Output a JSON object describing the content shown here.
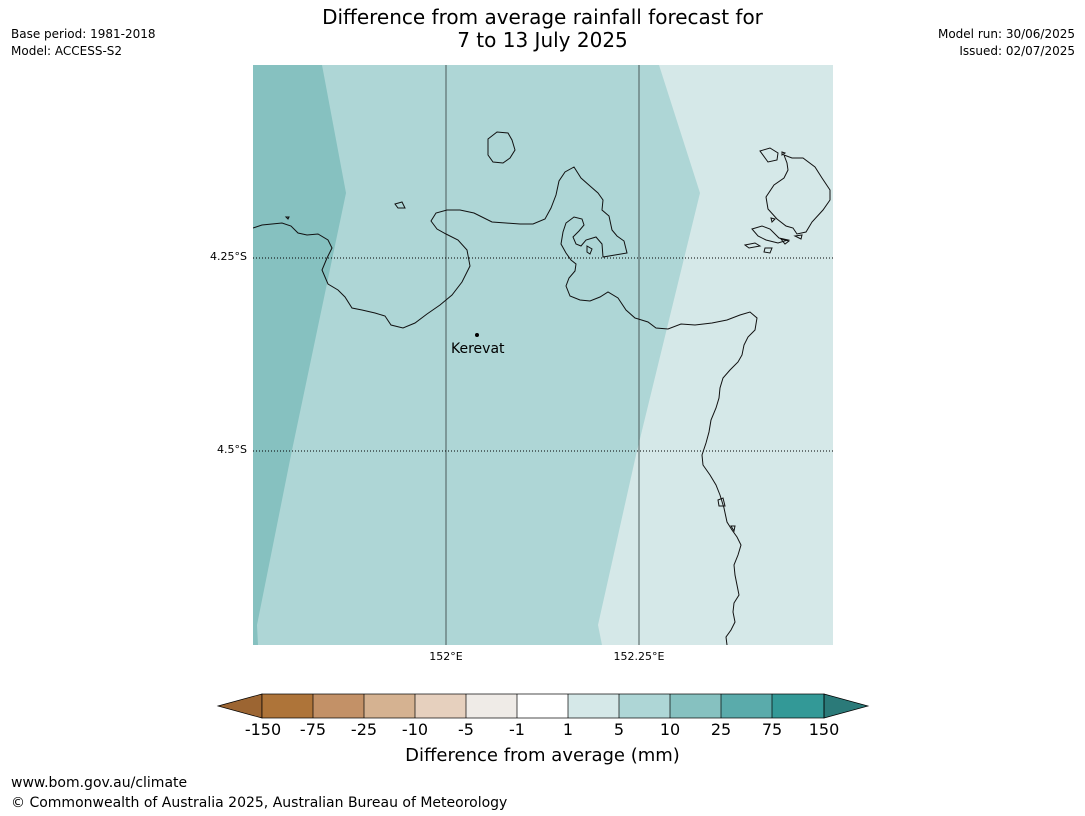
{
  "header": {
    "title_line1": "Difference from average rainfall forecast for",
    "title_line2": "7 to 13 July 2025",
    "base_period": "Base period: 1981-2018",
    "model": "Model: ACCESS-S2",
    "model_run": "Model run: 30/06/2025",
    "issued": "Issued: 02/07/2025"
  },
  "map": {
    "latitude_labels": [
      "4.25°S",
      "4.5°S"
    ],
    "longitude_labels": [
      "152°E",
      "152.25°E"
    ],
    "place_name": "Kerevat",
    "zone_colors": {
      "10_to_25": "#86c1c0",
      "5_to_10": "#aed6d6",
      "1_to_5": "#d5e8e8"
    }
  },
  "colorbar": {
    "title": "Difference from average (mm)",
    "ticks": [
      "-150",
      "-75",
      "-25",
      "-10",
      "-5",
      "-1",
      "1",
      "5",
      "10",
      "25",
      "75",
      "150"
    ],
    "colors": [
      "#9c6532",
      "#ae7439",
      "#c39167",
      "#d5b291",
      "#e6d0be",
      "#efebe7",
      "#ffffff",
      "#d5e8e8",
      "#aed6d6",
      "#86c1c0",
      "#5aabab",
      "#339997",
      "#2b7a79"
    ]
  },
  "footer": {
    "url": "www.bom.gov.au/climate",
    "copyright": "© Commonwealth of Australia 2025, Australian Bureau of Meteorology"
  }
}
